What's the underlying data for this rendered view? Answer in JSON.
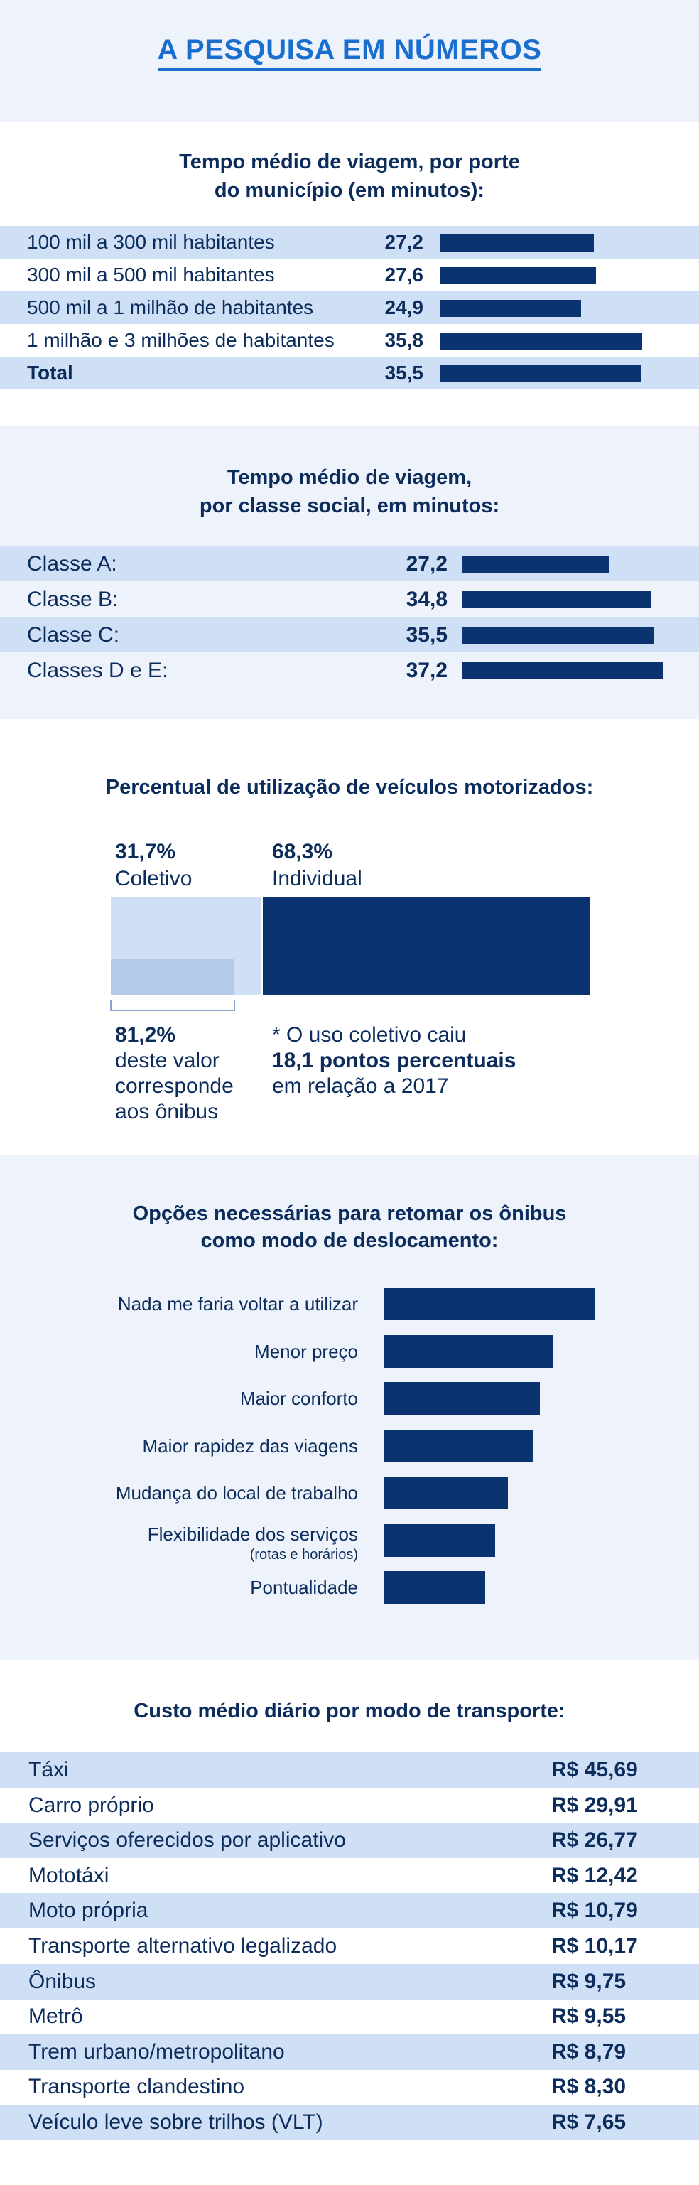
{
  "header": {
    "title": "A PESQUISA EM NÚMEROS"
  },
  "chart_data": [
    {
      "type": "bar",
      "title": "Tempo médio de viagem, por porte do município (em minutos):",
      "title_lines": [
        "Tempo médio de viagem, por porte",
        "do município (em minutos):"
      ],
      "categories": [
        "100 mil a 300 mil habitantes",
        "300 mil a 500 mil habitantes",
        "500 mil a 1 milhão de habitantes",
        "1 milhão e 3 milhões de habitantes",
        "Total"
      ],
      "values": [
        27.2,
        27.6,
        24.9,
        35.8,
        35.5
      ],
      "value_labels": [
        "27,2",
        "27,6",
        "24,9",
        "35,8",
        "35,5"
      ]
    },
    {
      "type": "bar",
      "title": "Tempo médio de viagem, por classe social, em minutos:",
      "title_lines": [
        "Tempo médio de viagem,",
        "por classe social, em minutos:"
      ],
      "categories": [
        "Classe A:",
        "Classe B:",
        "Classe C:",
        "Classes D e E:"
      ],
      "values": [
        27.2,
        34.8,
        35.5,
        37.2
      ],
      "value_labels": [
        "27,2",
        "34,8",
        "35,5",
        "37,2"
      ]
    },
    {
      "type": "bar",
      "title": "Percentual de utilização de veículos motorizados:",
      "categories": [
        "Coletivo",
        "Individual"
      ],
      "values": [
        31.7,
        68.3
      ],
      "value_labels": [
        "31,7%",
        "68,3%"
      ],
      "sub_share": {
        "value": 81.2,
        "value_label": "81,2%",
        "text_lines": [
          "deste valor",
          "corresponde",
          "aos ônibus"
        ]
      },
      "note": {
        "line1": "* O uso coletivo caiu",
        "line2": "18,1 pontos percentuais",
        "line3": "em relação a 2017"
      },
      "colors": {
        "coletivo": "#cfe0f6",
        "onibus": "#b3cbe8",
        "individual": "#0a3370"
      }
    },
    {
      "type": "bar",
      "title": "Opções necessárias para retomar os ônibus como modo de deslocamento:",
      "title_lines": [
        "Opções necessárias para retomar os ônibus",
        "como modo de deslocamento:"
      ],
      "categories": [
        "Nada me faria voltar a utilizar",
        "Menor preço",
        "Maior conforto",
        "Maior rapidez das viagens",
        "Mudança do local de trabalho",
        "Flexibilidade dos serviços",
        "Pontualidade"
      ],
      "sub_labels": [
        "",
        "",
        "",
        "",
        "",
        "(rotas e horários)",
        ""
      ],
      "values": [
        100,
        80,
        74,
        71,
        59,
        53,
        48
      ]
    },
    {
      "type": "table",
      "title": "Custo médio diário por modo de transporte:",
      "rows": [
        {
          "label": "Táxi",
          "value": "R$ 45,69"
        },
        {
          "label": "Carro próprio",
          "value": "R$ 29,91"
        },
        {
          "label": "Serviços oferecidos por aplicativo",
          "value": "R$ 26,77"
        },
        {
          "label": "Mototáxi",
          "value": "R$ 12,42"
        },
        {
          "label": "Moto própria",
          "value": "R$ 10,79"
        },
        {
          "label": "Transporte alternativo legalizado",
          "value": "R$ 10,17"
        },
        {
          "label": "Ônibus",
          "value": "R$ 9,75"
        },
        {
          "label": "Metrô",
          "value": "R$ 9,55"
        },
        {
          "label": "Trem urbano/metropolitano",
          "value": "R$ 8,79"
        },
        {
          "label": "Transporte clandestino",
          "value": "R$ 8,30"
        },
        {
          "label": "Veículo leve sobre trilhos (VLT)",
          "value": "R$ 7,65"
        }
      ]
    }
  ],
  "colors": {
    "title_blue": "#1a6fce",
    "navy": "#0a3370",
    "row_alt": "#cfe0f6",
    "bg_light": "#eef2fa"
  }
}
